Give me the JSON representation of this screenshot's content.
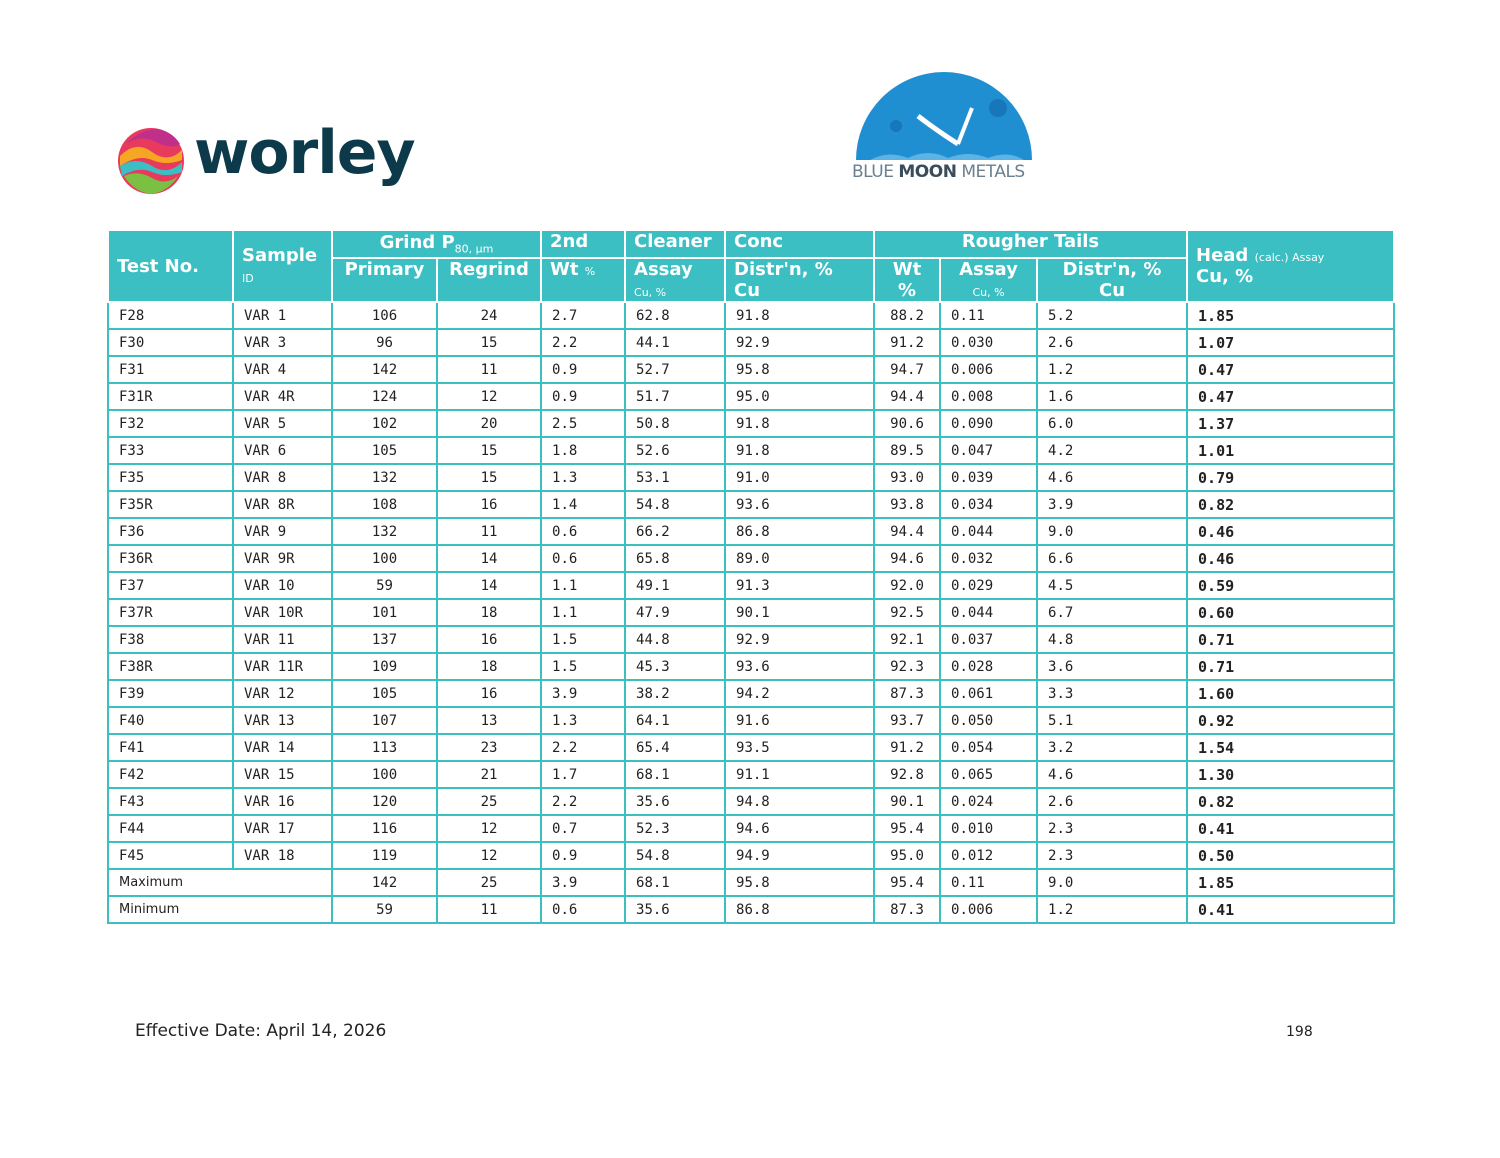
{
  "logos": {
    "worley": "worley",
    "bluemoon_light": "BLUE ",
    "bluemoon_bold": "MOON",
    "bluemoon_end": " METALS"
  },
  "table": {
    "headers": {
      "test_no": "Test No.",
      "sample": "Sample",
      "sample_sub": "ID",
      "grind": "Grind P",
      "grind_sub": "80, µm",
      "primary": "Primary",
      "regrind": "Regrind",
      "second": "2nd",
      "wt_pct": "Wt",
      "wt_pct_unit": "%",
      "cleaner": "Cleaner",
      "assay": "Assay",
      "cu_pct": "Cu, %",
      "conc": "Conc",
      "distrn": "Distr'n, %",
      "cu": "Cu",
      "rougher_tails": "Rougher Tails",
      "rt_wt": "Wt",
      "rt_wt_unit": "%",
      "rt_assay": "Assay",
      "rt_cu": "Cu, %",
      "rt_distrn": "Distr'n, %",
      "rt_distrn_cu": "Cu",
      "head": "Head",
      "head_calc": "(calc.) Assay",
      "head_cu": "Cu, %"
    },
    "rows": [
      [
        "F28",
        "VAR 1",
        "106",
        "24",
        "2.7",
        "62.8",
        "91.8",
        "88.2",
        "0.11",
        "5.2",
        "1.85"
      ],
      [
        "F30",
        "VAR 3",
        "96",
        "15",
        "2.2",
        "44.1",
        "92.9",
        "91.2",
        "0.030",
        "2.6",
        "1.07"
      ],
      [
        "F31",
        "VAR 4",
        "142",
        "11",
        "0.9",
        "52.7",
        "95.8",
        "94.7",
        "0.006",
        "1.2",
        "0.47"
      ],
      [
        "F31R",
        "VAR 4R",
        "124",
        "12",
        "0.9",
        "51.7",
        "95.0",
        "94.4",
        "0.008",
        "1.6",
        "0.47"
      ],
      [
        "F32",
        "VAR 5",
        "102",
        "20",
        "2.5",
        "50.8",
        "91.8",
        "90.6",
        "0.090",
        "6.0",
        "1.37"
      ],
      [
        "F33",
        "VAR 6",
        "105",
        "15",
        "1.8",
        "52.6",
        "91.8",
        "89.5",
        "0.047",
        "4.2",
        "1.01"
      ],
      [
        "F35",
        "VAR 8",
        "132",
        "15",
        "1.3",
        "53.1",
        "91.0",
        "93.0",
        "0.039",
        "4.6",
        "0.79"
      ],
      [
        "F35R",
        "VAR 8R",
        "108",
        "16",
        "1.4",
        "54.8",
        "93.6",
        "93.8",
        "0.034",
        "3.9",
        "0.82"
      ],
      [
        "F36",
        "VAR 9",
        "132",
        "11",
        "0.6",
        "66.2",
        "86.8",
        "94.4",
        "0.044",
        "9.0",
        "0.46"
      ],
      [
        "F36R",
        "VAR 9R",
        "100",
        "14",
        "0.6",
        "65.8",
        "89.0",
        "94.6",
        "0.032",
        "6.6",
        "0.46"
      ],
      [
        "F37",
        "VAR 10",
        "59",
        "14",
        "1.1",
        "49.1",
        "91.3",
        "92.0",
        "0.029",
        "4.5",
        "0.59"
      ],
      [
        "F37R",
        "VAR 10R",
        "101",
        "18",
        "1.1",
        "47.9",
        "90.1",
        "92.5",
        "0.044",
        "6.7",
        "0.60"
      ],
      [
        "F38",
        "VAR 11",
        "137",
        "16",
        "1.5",
        "44.8",
        "92.9",
        "92.1",
        "0.037",
        "4.8",
        "0.71"
      ],
      [
        "F38R",
        "VAR 11R",
        "109",
        "18",
        "1.5",
        "45.3",
        "93.6",
        "92.3",
        "0.028",
        "3.6",
        "0.71"
      ],
      [
        "F39",
        "VAR 12",
        "105",
        "16",
        "3.9",
        "38.2",
        "94.2",
        "87.3",
        "0.061",
        "3.3",
        "1.60"
      ],
      [
        "F40",
        "VAR 13",
        "107",
        "13",
        "1.3",
        "64.1",
        "91.6",
        "93.7",
        "0.050",
        "5.1",
        "0.92"
      ],
      [
        "F41",
        "VAR 14",
        "113",
        "23",
        "2.2",
        "65.4",
        "93.5",
        "91.2",
        "0.054",
        "3.2",
        "1.54"
      ],
      [
        "F42",
        "VAR 15",
        "100",
        "21",
        "1.7",
        "68.1",
        "91.1",
        "92.8",
        "0.065",
        "4.6",
        "1.30"
      ],
      [
        "F43",
        "VAR 16",
        "120",
        "25",
        "2.2",
        "35.6",
        "94.8",
        "90.1",
        "0.024",
        "2.6",
        "0.82"
      ],
      [
        "F44",
        "VAR 17",
        "116",
        "12",
        "0.7",
        "52.3",
        "94.6",
        "95.4",
        "0.010",
        "2.3",
        "0.41"
      ],
      [
        "F45",
        "VAR 18",
        "119",
        "12",
        "0.9",
        "54.8",
        "94.9",
        "95.0",
        "0.012",
        "2.3",
        "0.50"
      ]
    ],
    "summary": [
      [
        "Maximum",
        "142",
        "25",
        "3.9",
        "68.1",
        "95.8",
        "95.4",
        "0.11",
        "9.0",
        "1.85"
      ],
      [
        "Minimum",
        "59",
        "11",
        "0.6",
        "35.6",
        "86.8",
        "87.3",
        "0.006",
        "1.2",
        "0.41"
      ]
    ]
  },
  "footer": {
    "effective_date": "Effective Date: April 14, 2026",
    "page_number": "198"
  }
}
